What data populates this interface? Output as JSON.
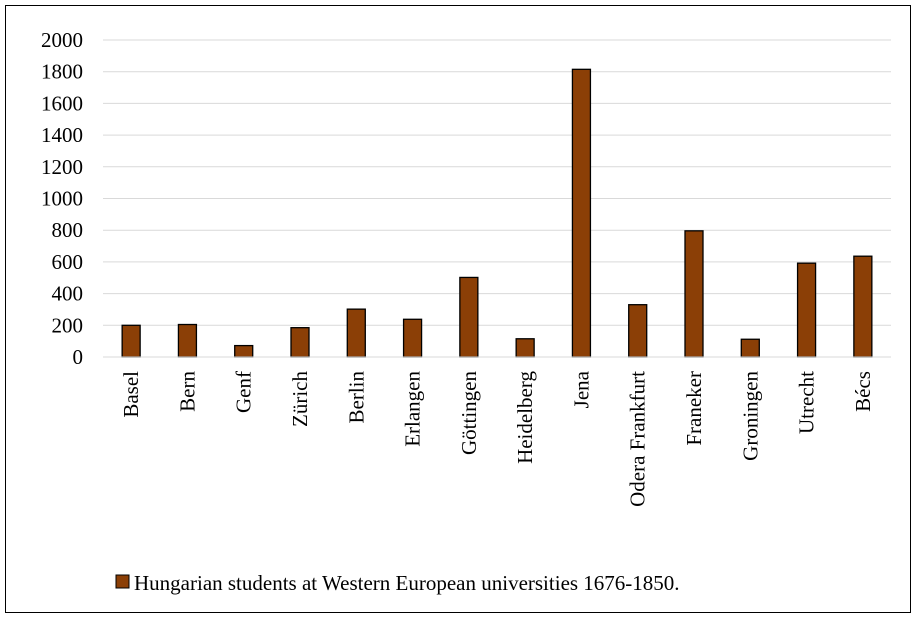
{
  "chart_data": {
    "type": "bar",
    "title": "",
    "xlabel": "",
    "ylabel": "",
    "categories": [
      "Basel",
      "Bern",
      "Genf",
      "Zürich",
      "Berlin",
      "Erlangen",
      "Göttingen",
      "Heidelberg",
      "Jena",
      "Odera Frankfurt",
      "Franeker",
      "Groningen",
      "Utrecht",
      "Bécs"
    ],
    "series": [
      {
        "name": "Hungarian students at Western European universities 1676-1850.",
        "values": [
          200,
          205,
          72,
          185,
          302,
          238,
          502,
          115,
          1815,
          330,
          796,
          112,
          592,
          636
        ],
        "color": "#8B3F06",
        "edge_color": "#000000"
      }
    ],
    "ylim": [
      0,
      2000
    ],
    "yticks": [
      0,
      200,
      400,
      600,
      800,
      1000,
      1200,
      1400,
      1600,
      1800,
      2000
    ],
    "grid": true,
    "gridline_color": "#D9D9D9",
    "legend_position": "bottom"
  }
}
